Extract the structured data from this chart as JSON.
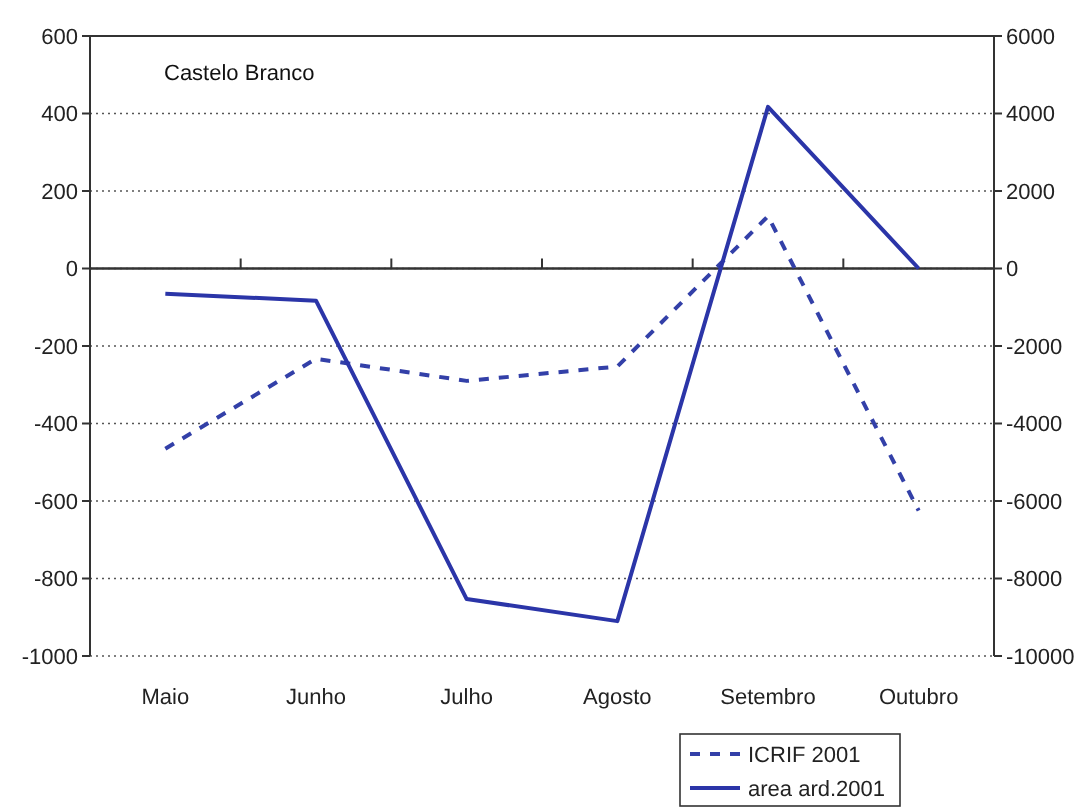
{
  "chart_data": {
    "type": "line",
    "title": "Castelo Branco",
    "categories": [
      "Maio",
      "Junho",
      "Julho",
      "Agosto",
      "Setembro",
      "Outubro"
    ],
    "series": [
      {
        "name": "ICRIF 2001",
        "color": "#3340a8",
        "values": [
          -465,
          -233,
          -290,
          -253,
          135,
          -625
        ],
        "line_style": "dashed"
      },
      {
        "name": "area ard.2001",
        "color": "#2b35a8",
        "values": [
          -650,
          -830,
          -8530,
          -9100,
          4170,
          0
        ],
        "line_style": "solid",
        "axis": "y2"
      }
    ],
    "ylim": [
      -1000,
      600
    ],
    "yticks": [
      -1000,
      -800,
      -600,
      -400,
      -200,
      0,
      200,
      400,
      600
    ],
    "y2lim": [
      -10000,
      6000
    ],
    "y2ticks": [
      -10000,
      -8000,
      -6000,
      -4000,
      -2000,
      0,
      2000,
      4000,
      6000
    ],
    "grid": "y",
    "legend": "bottom",
    "marker": "none"
  }
}
